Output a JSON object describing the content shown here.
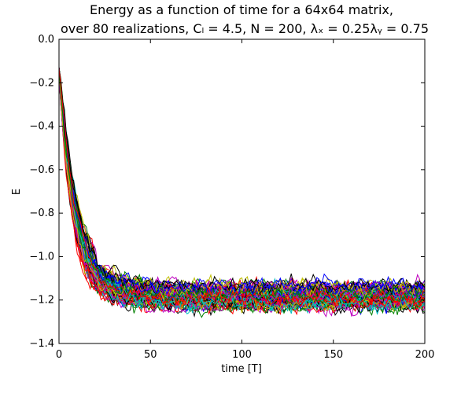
{
  "chart_data": {
    "type": "line",
    "title_lines": [
      "Energy as a function of time for a 64x64 matrix,",
      "over 80    realizations, Cₗ = 4.5, N = 200, λₓ = 0.25λᵧ = 0.75"
    ],
    "xlabel": "time [T]",
    "ylabel": "E",
    "xlim": [
      0,
      200
    ],
    "ylim": [
      -1.4,
      0.0
    ],
    "xticks": [
      "0",
      "50",
      "100",
      "150",
      "200"
    ],
    "yticks": [
      "0.0",
      "−0.2",
      "−0.4",
      "−0.6",
      "−0.8",
      "−1.0",
      "−1.2",
      "−1.4"
    ],
    "grid": false,
    "legend": "none",
    "n_series": 80,
    "series_colors": [
      "#0000ff",
      "#008000",
      "#ff0000",
      "#00bfbf",
      "#bf00bf",
      "#bfbf00",
      "#000000"
    ],
    "envelope": {
      "start_value": -0.13,
      "plateau_mean": -1.18,
      "plateau_spread": [
        -1.31,
        -1.04
      ],
      "decay_time_constant": 8.5
    }
  }
}
